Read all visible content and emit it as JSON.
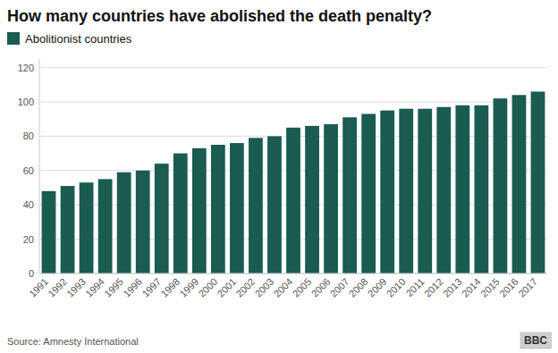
{
  "chart_data": {
    "type": "bar",
    "title": "How many countries have abolished the death penalty?",
    "categories": [
      "1991",
      "1992",
      "1993",
      "1994",
      "1995",
      "1996",
      "1997",
      "1998",
      "1999",
      "2000",
      "2001",
      "2002",
      "2003",
      "2004",
      "2005",
      "2006",
      "2007",
      "2008",
      "2009",
      "2010",
      "2011",
      "2012",
      "2013",
      "2014",
      "2015",
      "2016",
      "2017"
    ],
    "series": [
      {
        "name": "Abolitionist countries",
        "color": "#1a5c52",
        "values": [
          48,
          51,
          53,
          55,
          59,
          60,
          64,
          70,
          73,
          75,
          76,
          79,
          80,
          85,
          86,
          87,
          91,
          93,
          95,
          96,
          96,
          97,
          98,
          98,
          102,
          104,
          106
        ]
      }
    ],
    "ylim": [
      0,
      125
    ],
    "yticks": [
      0,
      20,
      40,
      60,
      80,
      100,
      120
    ],
    "grid": true,
    "legend": "top-left",
    "annotations": [
      "Source: Amnesty International",
      "BBC"
    ]
  }
}
